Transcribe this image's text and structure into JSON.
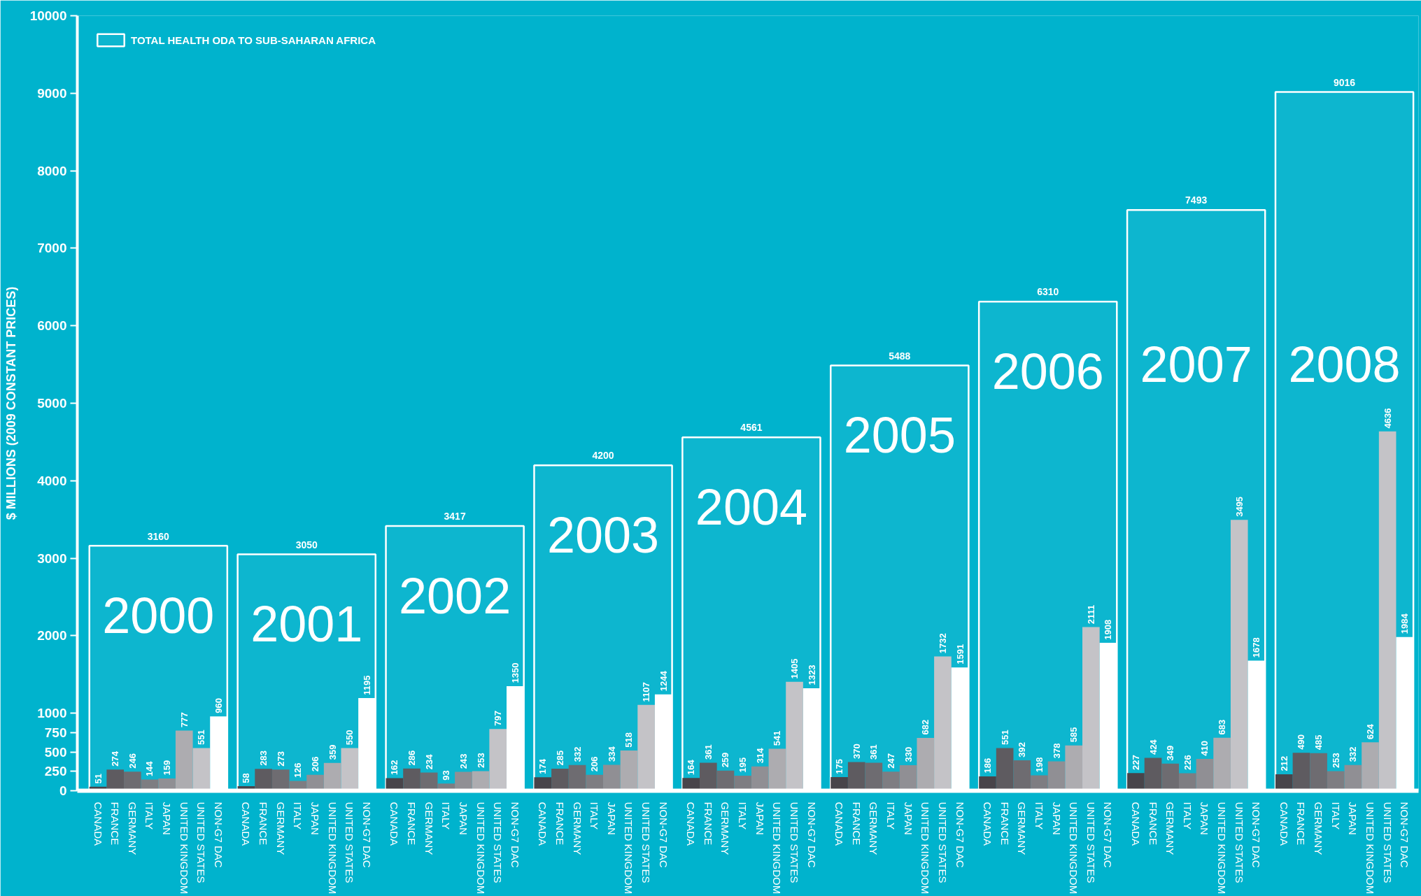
{
  "chart_data": {
    "type": "bar",
    "ylabel": "$ MILLIONS (2009 CONSTANT PRICES)",
    "categories": [
      "2000",
      "2001",
      "2002",
      "2003",
      "2004",
      "2005",
      "2006",
      "2007",
      "2008"
    ],
    "series": [
      {
        "name": "CANADA",
        "color": "#48444a",
        "values": [
          51,
          58,
          162,
          174,
          164,
          175,
          186,
          227,
          212
        ]
      },
      {
        "name": "FRANCE",
        "color": "#5e5b60",
        "values": [
          274,
          283,
          286,
          285,
          361,
          370,
          551,
          424,
          490
        ]
      },
      {
        "name": "GERMANY",
        "color": "#6e6c71",
        "values": [
          246,
          273,
          234,
          332,
          259,
          361,
          392,
          349,
          485
        ]
      },
      {
        "name": "ITALY",
        "color": "#7e7d82",
        "values": [
          144,
          126,
          93,
          206,
          195,
          247,
          198,
          226,
          253
        ]
      },
      {
        "name": "JAPAN",
        "color": "#908f94",
        "values": [
          159,
          206,
          243,
          334,
          314,
          330,
          378,
          410,
          332
        ]
      },
      {
        "name": "UNITED KINGDOM",
        "color": "#adacb0",
        "values": [
          777,
          359,
          253,
          518,
          541,
          682,
          585,
          683,
          624
        ]
      },
      {
        "name": "UNITED STATES",
        "color": "#c4c3c7",
        "values": [
          551,
          550,
          797,
          1107,
          1405,
          1732,
          2111,
          3495,
          4636
        ]
      },
      {
        "name": "NON-G7 DAC",
        "color": "#ffffff",
        "values": [
          960,
          1195,
          1350,
          1244,
          1323,
          1591,
          1908,
          1678,
          1984
        ]
      },
      {
        "name": "TOTAL HEALTH ODA TO SUB-SAHARAN AFRICA",
        "type": "bar",
        "color": "#ffffff",
        "values": [
          3160,
          3050,
          3417,
          4200,
          4561,
          5488,
          6310,
          7493,
          9016
        ]
      }
    ],
    "ylim": [
      0,
      10000
    ],
    "yticks": [
      0,
      250,
      500,
      750,
      1000,
      2000,
      3000,
      4000,
      5000,
      6000,
      7000,
      8000,
      9000,
      10000
    ],
    "data_labels": true,
    "legend": "top left"
  }
}
